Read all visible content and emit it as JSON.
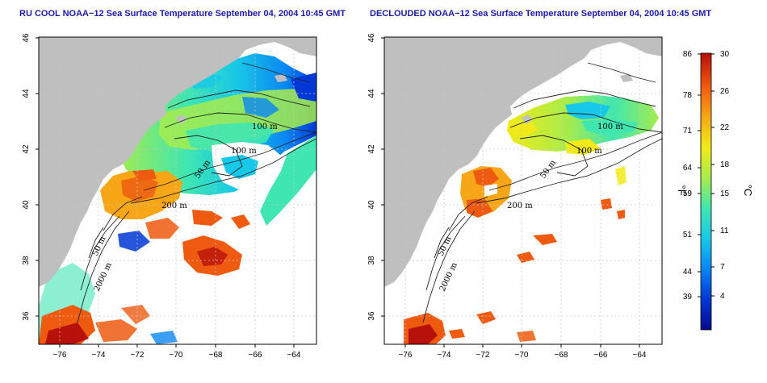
{
  "panels": [
    {
      "id": "left",
      "title": "RU COOL NOAA−12 Sea Surface Temperature September 04, 2004 10:45 GMT",
      "contour_labels": [
        "100 m",
        "100 m",
        "50 m",
        "200 m",
        "50 m",
        "2000 m"
      ]
    },
    {
      "id": "right",
      "title": "DECLOUDED NOAA−12 Sea Surface Temperature September 04, 2004 10:45 GMT",
      "contour_labels": [
        "100 m",
        "100 m",
        "50 m",
        "200 m",
        "50 m",
        "2000 m"
      ]
    }
  ],
  "x_ticks": [
    "−76",
    "−74",
    "−72",
    "−70",
    "−68",
    "−66",
    "−64"
  ],
  "y_ticks": [
    "36",
    "38",
    "40",
    "42",
    "44",
    "46"
  ],
  "colorbar": {
    "fahrenheit_ticks": [
      "86",
      "78",
      "71",
      "64",
      "59",
      "51",
      "44",
      "39"
    ],
    "celsius_ticks": [
      "30",
      "26",
      "22",
      "18",
      "15",
      "11",
      "7",
      "4"
    ],
    "fahrenheit_unit": "°F",
    "celsius_unit": "°C",
    "colors": [
      "#0a0a8c",
      "#0037d6",
      "#0a86f2",
      "#18c8e8",
      "#40e6b0",
      "#a6ec4c",
      "#f2ea18",
      "#f6a616",
      "#ee5a10",
      "#b8100a"
    ]
  }
}
